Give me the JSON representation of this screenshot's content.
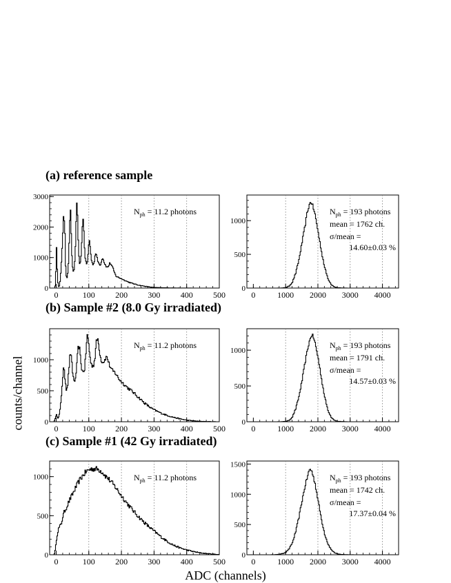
{
  "ylabel": "counts/channel",
  "xlabel": "ADC (channels)",
  "rows": [
    {
      "title": "(a) reference sample"
    },
    {
      "title": "(b) Sample #2 (8.0 Gy irradiated)"
    },
    {
      "title": "(c) Sample #1 (42 Gy irradiated)"
    }
  ],
  "chart_data": [
    {
      "id": "a-left",
      "type": "line",
      "row": 0,
      "side": "left",
      "xlim": [
        -20,
        500
      ],
      "ylim": [
        0,
        3050
      ],
      "xticks": [
        0,
        100,
        200,
        300,
        400,
        500
      ],
      "xtick_labels": [
        "0",
        "100",
        "200",
        "300",
        "400",
        "500"
      ],
      "yticks": [
        0,
        1000,
        2000,
        3000
      ],
      "ytick_labels": [
        "0",
        "1000",
        "2000",
        "3000"
      ],
      "grid_x": [
        100,
        200,
        300,
        400
      ],
      "annotation_lines": [
        {
          "n": "N",
          "sub": "ph",
          "rest": " = 11.2 photons"
        }
      ],
      "x": [
        -15,
        -10,
        -5,
        -3,
        0,
        3,
        5,
        8,
        10,
        14,
        18,
        22,
        26,
        28,
        30,
        32,
        34,
        36,
        38,
        40,
        42,
        44,
        46,
        48,
        50,
        52,
        54,
        56,
        58,
        60,
        62,
        64,
        66,
        68,
        70,
        72,
        74,
        76,
        78,
        80,
        82,
        84,
        86,
        88,
        90,
        92,
        94,
        96,
        98,
        100,
        102,
        104,
        106,
        108,
        110,
        112,
        114,
        116,
        118,
        120,
        122,
        124,
        126,
        128,
        130,
        132,
        134,
        136,
        138,
        140,
        142,
        144,
        146,
        148,
        150,
        152,
        154,
        156,
        158,
        160,
        162,
        164,
        166,
        168,
        170,
        172,
        174,
        176,
        178,
        180,
        182,
        184,
        186,
        188,
        190,
        200,
        210,
        220,
        230,
        240,
        250,
        260,
        270,
        280,
        290,
        300,
        320,
        340,
        360,
        380,
        400,
        430,
        460,
        500
      ],
      "y": [
        0,
        0,
        0,
        200,
        1300,
        400,
        80,
        40,
        120,
        600,
        1500,
        2500,
        1700,
        700,
        400,
        350,
        450,
        700,
        1200,
        1950,
        2700,
        2300,
        1400,
        800,
        600,
        550,
        600,
        900,
        1400,
        2100,
        2850,
        2500,
        1700,
        1100,
        850,
        800,
        850,
        1150,
        1700,
        2200,
        2250,
        1800,
        1300,
        1000,
        850,
        800,
        820,
        1000,
        1300,
        1600,
        1500,
        1250,
        1000,
        880,
        800,
        780,
        800,
        900,
        1050,
        1150,
        1100,
        1000,
        900,
        850,
        800,
        780,
        760,
        800,
        870,
        1000,
        980,
        920,
        850,
        800,
        760,
        720,
        690,
        680,
        700,
        730,
        790,
        820,
        800,
        760,
        720,
        670,
        620,
        560,
        500,
        450,
        400,
        380,
        370,
        360,
        350,
        300,
        250,
        200,
        160,
        130,
        100,
        80,
        60,
        45,
        30,
        20,
        12,
        8,
        4,
        2,
        1,
        0,
        0,
        0
      ],
      "color": "#000000"
    },
    {
      "id": "a-right",
      "type": "line",
      "row": 0,
      "side": "right",
      "xlim": [
        -200,
        4500
      ],
      "ylim": [
        0,
        1380
      ],
      "xticks": [
        0,
        1000,
        2000,
        3000,
        4000
      ],
      "xtick_labels": [
        "0",
        "1000",
        "2000",
        "3000",
        "4000"
      ],
      "yticks": [
        0,
        500,
        1000
      ],
      "ytick_labels": [
        "0",
        "500",
        "1000"
      ],
      "grid_x": [
        1000,
        2000,
        3000,
        4000
      ],
      "annotation_lines": [
        {
          "n": "N",
          "sub": "ph",
          "rest": " = 193 photons"
        },
        {
          "n": "mean = 1762 ch.",
          "sub": "",
          "rest": ""
        },
        {
          "n": "σ/mean =",
          "sub": "",
          "rest": ""
        },
        {
          "n": "14.60±0.03 %",
          "sub": "",
          "rest": "",
          "align": "right"
        }
      ],
      "x": [
        -100,
        700,
        900,
        1000,
        1100,
        1200,
        1300,
        1400,
        1500,
        1600,
        1650,
        1700,
        1762,
        1800,
        1850,
        1900,
        2000,
        2100,
        2200,
        2300,
        2400,
        2500,
        2600,
        2800,
        3000,
        4400
      ],
      "y": [
        0,
        0,
        2,
        8,
        30,
        90,
        220,
        420,
        680,
        950,
        1100,
        1200,
        1280,
        1260,
        1180,
        1090,
        820,
        540,
        300,
        140,
        55,
        18,
        5,
        1,
        0,
        0
      ],
      "color": "#000000"
    },
    {
      "id": "b-left",
      "type": "line",
      "row": 1,
      "side": "left",
      "xlim": [
        -20,
        500
      ],
      "ylim": [
        0,
        1500
      ],
      "xticks": [
        0,
        100,
        200,
        300,
        400,
        500
      ],
      "xtick_labels": [
        "0",
        "100",
        "200",
        "300",
        "400",
        "500"
      ],
      "yticks": [
        0,
        500,
        1000
      ],
      "ytick_labels": [
        "0",
        "500",
        "1000"
      ],
      "grid_x": [
        100,
        200,
        300,
        400
      ],
      "annotation_lines": [
        {
          "n": "N",
          "sub": "ph",
          "rest": " = 11.2 photons"
        }
      ],
      "x": [
        -15,
        -8,
        -3,
        0,
        3,
        6,
        10,
        14,
        18,
        22,
        26,
        30,
        34,
        38,
        42,
        46,
        50,
        54,
        58,
        62,
        66,
        70,
        74,
        78,
        82,
        86,
        90,
        94,
        98,
        102,
        106,
        110,
        114,
        118,
        122,
        126,
        130,
        134,
        138,
        142,
        146,
        150,
        154,
        158,
        162,
        166,
        170,
        174,
        178,
        182,
        186,
        190,
        200,
        210,
        220,
        230,
        240,
        250,
        260,
        270,
        280,
        290,
        300,
        320,
        340,
        360,
        380,
        400,
        430,
        460,
        500
      ],
      "y": [
        0,
        0,
        60,
        130,
        70,
        60,
        150,
        350,
        650,
        880,
        700,
        530,
        580,
        850,
        1130,
        1010,
        760,
        660,
        680,
        900,
        1180,
        1220,
        990,
        830,
        800,
        850,
        1100,
        1400,
        1300,
        1070,
        930,
        900,
        920,
        1040,
        1280,
        1350,
        1220,
        1060,
        980,
        960,
        980,
        1020,
        1050,
        990,
        920,
        870,
        830,
        810,
        800,
        770,
        740,
        700,
        640,
        590,
        540,
        500,
        450,
        400,
        350,
        300,
        260,
        220,
        190,
        140,
        100,
        70,
        45,
        25,
        10,
        3,
        0
      ],
      "color": "#000000"
    },
    {
      "id": "b-right",
      "type": "line",
      "row": 1,
      "side": "right",
      "xlim": [
        -200,
        4500
      ],
      "ylim": [
        0,
        1300
      ],
      "xticks": [
        0,
        1000,
        2000,
        3000,
        4000
      ],
      "xtick_labels": [
        "0",
        "1000",
        "2000",
        "3000",
        "4000"
      ],
      "yticks": [
        0,
        500,
        1000
      ],
      "ytick_labels": [
        "0",
        "500",
        "1000"
      ],
      "grid_x": [
        1000,
        2000,
        3000,
        4000
      ],
      "annotation_lines": [
        {
          "n": "N",
          "sub": "ph",
          "rest": " = 193 photons"
        },
        {
          "n": "mean = 1791 ch.",
          "sub": "",
          "rest": ""
        },
        {
          "n": "σ/mean =",
          "sub": "",
          "rest": ""
        },
        {
          "n": "14.57±0.03 %",
          "sub": "",
          "rest": "",
          "align": "right"
        }
      ],
      "x": [
        -100,
        700,
        900,
        1000,
        1100,
        1200,
        1300,
        1400,
        1500,
        1600,
        1700,
        1791,
        1850,
        1900,
        2000,
        2100,
        2200,
        2300,
        2400,
        2500,
        2600,
        2800,
        3000,
        4400
      ],
      "y": [
        0,
        0,
        2,
        6,
        20,
        70,
        180,
        350,
        580,
        850,
        1080,
        1220,
        1180,
        1100,
        880,
        600,
        340,
        160,
        65,
        22,
        6,
        1,
        0,
        0
      ],
      "color": "#000000"
    },
    {
      "id": "c-left",
      "type": "line",
      "row": 2,
      "side": "left",
      "xlim": [
        -20,
        500
      ],
      "ylim": [
        0,
        1200
      ],
      "xticks": [
        0,
        100,
        200,
        300,
        400,
        500
      ],
      "xtick_labels": [
        "0",
        "100",
        "200",
        "300",
        "400",
        "500"
      ],
      "yticks": [
        0,
        500,
        1000
      ],
      "ytick_labels": [
        "0",
        "500",
        "1000"
      ],
      "grid_x": [
        100,
        200,
        300,
        400
      ],
      "annotation_lines": [
        {
          "n": "N",
          "sub": "ph",
          "rest": " = 11.2 photons"
        }
      ],
      "x": [
        -15,
        -8,
        -5,
        -2,
        0,
        3,
        6,
        10,
        15,
        20,
        25,
        30,
        40,
        50,
        60,
        70,
        80,
        90,
        100,
        110,
        120,
        130,
        140,
        150,
        160,
        170,
        180,
        190,
        200,
        220,
        240,
        260,
        280,
        300,
        320,
        340,
        360,
        380,
        400,
        420,
        440,
        460,
        480,
        500
      ],
      "y": [
        0,
        0,
        30,
        120,
        200,
        280,
        330,
        360,
        400,
        500,
        560,
        600,
        700,
        780,
        870,
        950,
        1010,
        1060,
        1090,
        1100,
        1100,
        1090,
        1060,
        1010,
        970,
        920,
        870,
        810,
        750,
        640,
        540,
        450,
        370,
        300,
        230,
        170,
        120,
        85,
        60,
        40,
        25,
        15,
        8,
        3
      ],
      "color": "#000000"
    },
    {
      "id": "c-right",
      "type": "line",
      "row": 2,
      "side": "right",
      "xlim": [
        -200,
        4500
      ],
      "ylim": [
        0,
        1550
      ],
      "xticks": [
        0,
        1000,
        2000,
        3000,
        4000
      ],
      "xtick_labels": [
        "0",
        "1000",
        "2000",
        "3000",
        "4000"
      ],
      "yticks": [
        0,
        500,
        1000,
        1500
      ],
      "ytick_labels": [
        "0",
        "500",
        "1000",
        "1500"
      ],
      "grid_x": [
        1000,
        2000,
        3000,
        4000
      ],
      "annotation_lines": [
        {
          "n": "N",
          "sub": "ph",
          "rest": " = 193 photons"
        },
        {
          "n": "mean = 1742 ch.",
          "sub": "",
          "rest": ""
        },
        {
          "n": "σ/mean =",
          "sub": "",
          "rest": ""
        },
        {
          "n": "17.37±0.04 %",
          "sub": "",
          "rest": "",
          "align": "right"
        }
      ],
      "x": [
        -100,
        500,
        700,
        800,
        900,
        1000,
        1100,
        1200,
        1300,
        1400,
        1500,
        1600,
        1700,
        1742,
        1800,
        1900,
        2000,
        2100,
        2200,
        2300,
        2400,
        2500,
        2600,
        2800,
        3000,
        3200,
        4400
      ],
      "y": [
        0,
        0,
        3,
        8,
        20,
        45,
        100,
        200,
        380,
        620,
        900,
        1160,
        1360,
        1420,
        1380,
        1180,
        880,
        580,
        340,
        180,
        85,
        35,
        12,
        3,
        1,
        0,
        0
      ],
      "color": "#000000"
    }
  ]
}
